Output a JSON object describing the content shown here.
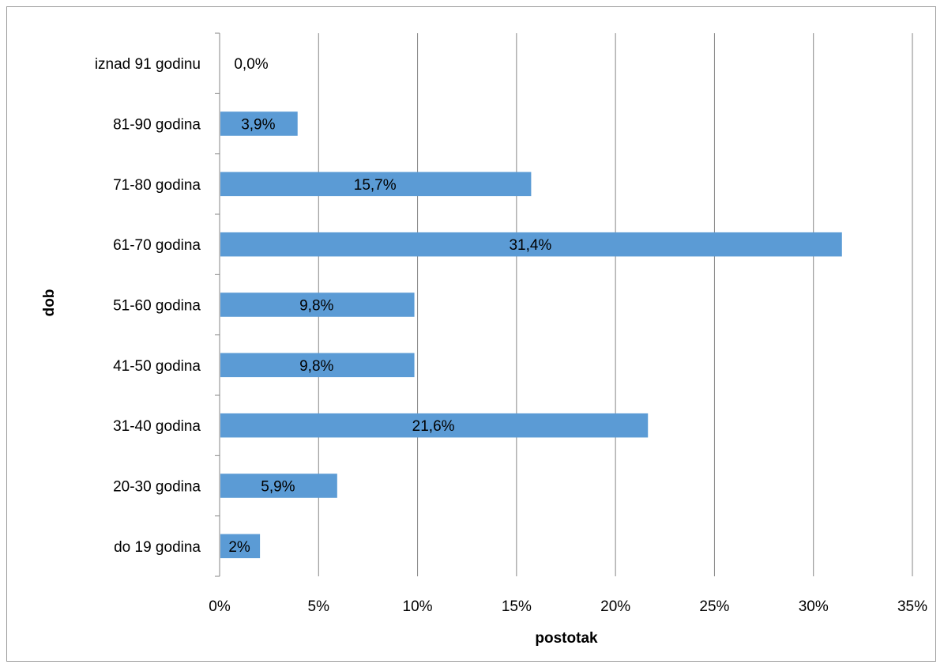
{
  "chart_data": {
    "type": "bar",
    "orientation": "horizontal",
    "title": "",
    "xlabel": "postotak",
    "ylabel": "dob",
    "categories": [
      "do 19 godina",
      "20-30 godina",
      "31-40 godina",
      "41-50 godina",
      "51-60 godina",
      "61-70 godina",
      "71-80 godina",
      "81-90 godina",
      "iznad 91 godinu"
    ],
    "values": [
      2,
      5.9,
      21.6,
      9.8,
      9.8,
      31.4,
      15.7,
      3.9,
      0
    ],
    "data_labels": [
      "2%",
      "5,9%",
      "21,6%",
      "9,8%",
      "9,8%",
      "31,4%",
      "15,7%",
      "3,9%",
      "0,0%"
    ],
    "xlim": [
      0,
      35
    ],
    "x_ticks": [
      0,
      5,
      10,
      15,
      20,
      25,
      30,
      35
    ],
    "x_tick_labels": [
      "0%",
      "5%",
      "10%",
      "15%",
      "20%",
      "25%",
      "30%",
      "35%"
    ],
    "grid": "vertical",
    "legend": "none",
    "bar_color": "#5b9bd5",
    "gridline_color": "#868686"
  }
}
